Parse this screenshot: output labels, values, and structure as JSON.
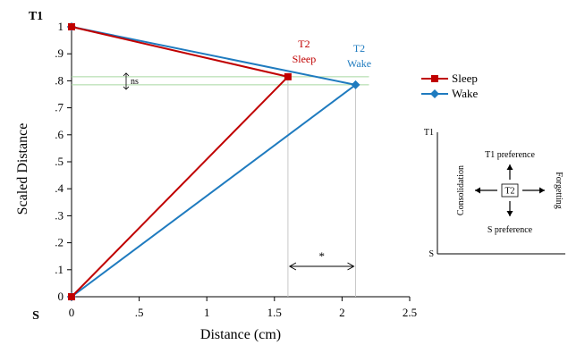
{
  "chart_data": [
    {
      "type": "line",
      "xlabel": "Distance (cm)",
      "ylabel": "Scaled Distance",
      "xlim": [
        0,
        2.5
      ],
      "ylim": [
        0,
        1
      ],
      "x_ticks": [
        "0",
        ".5",
        "1",
        "1.5",
        "2",
        "2.5"
      ],
      "y_ticks": [
        "0",
        ".1",
        ".2",
        ".3",
        ".4",
        ".5",
        ".6",
        ".7",
        ".8",
        ".9",
        "1"
      ],
      "y_top_label": "T1",
      "y_bottom_label": "S",
      "series": [
        {
          "name": "Sleep",
          "color": "#c00000",
          "marker": "square",
          "points": [
            [
              0,
              0
            ],
            [
              1.6,
              0.815
            ],
            [
              0,
              1
            ]
          ]
        },
        {
          "name": "Wake",
          "color": "#1f7bbf",
          "marker": "diamond",
          "points": [
            [
              0,
              0
            ],
            [
              2.1,
              0.785
            ],
            [
              0,
              1
            ]
          ]
        }
      ],
      "point_labels": [
        {
          "series": "Sleep",
          "lines": [
            "T2",
            "Sleep"
          ]
        },
        {
          "series": "Wake",
          "lines": [
            "T2",
            "Wake"
          ]
        }
      ],
      "annotations": {
        "y_comparison": "ns",
        "x_comparison": "*"
      },
      "grid": false,
      "legend_placement": "right"
    },
    {
      "type": "diagram",
      "corner_top": "T1",
      "corner_bottom": "S",
      "center": "T2",
      "up": "T1 preference",
      "down": "S preference",
      "left": "Consolidation",
      "right": "Forgetting"
    }
  ]
}
